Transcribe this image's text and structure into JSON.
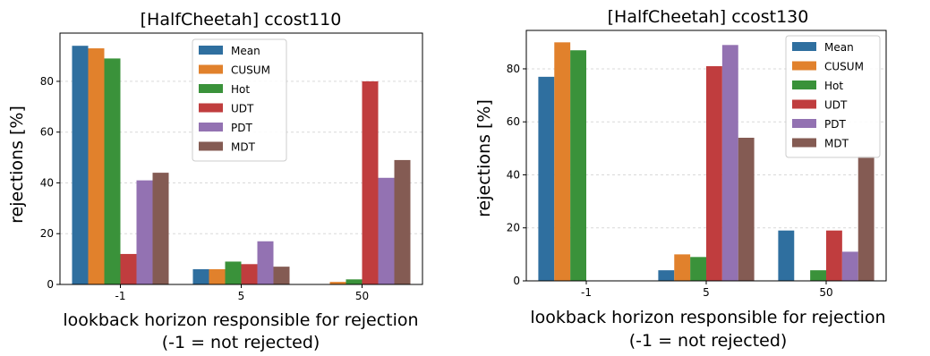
{
  "chart_data": [
    {
      "type": "bar",
      "title": "[HalfCheetah] ccost110",
      "xlabel": "lookback horizon responsible for rejection",
      "xlabel2": "(-1 = not rejected)",
      "ylabel": "rejections [%]",
      "categories": [
        "-1",
        "5",
        "50"
      ],
      "ylim": [
        0,
        99
      ],
      "yticks": [
        0,
        20,
        40,
        60,
        80
      ],
      "grid": "horizontal dashed",
      "legend_position": "top-center",
      "series": [
        {
          "name": "Mean",
          "color": "#2f6f9f",
          "values": [
            94,
            6,
            0
          ]
        },
        {
          "name": "CUSUM",
          "color": "#e1812c",
          "values": [
            93,
            6,
            1
          ]
        },
        {
          "name": "Hot",
          "color": "#3a923a",
          "values": [
            89,
            9,
            2
          ]
        },
        {
          "name": "UDT",
          "color": "#c03d3e",
          "values": [
            12,
            8,
            80
          ]
        },
        {
          "name": "PDT",
          "color": "#9372b2",
          "values": [
            41,
            17,
            42
          ]
        },
        {
          "name": "MDT",
          "color": "#845b53",
          "values": [
            44,
            7,
            49
          ]
        }
      ]
    },
    {
      "type": "bar",
      "title": "[HalfCheetah] ccost130",
      "xlabel": "lookback horizon responsible for rejection",
      "xlabel2": "(-1 = not rejected)",
      "ylabel": "rejections [%]",
      "categories": [
        "-1",
        "5",
        "50"
      ],
      "ylim": [
        0,
        94.5
      ],
      "yticks": [
        0,
        20,
        40,
        60,
        80
      ],
      "grid": "horizontal dashed",
      "legend_position": "top-right",
      "series": [
        {
          "name": "Mean",
          "color": "#2f6f9f",
          "values": [
            77,
            4,
            19
          ]
        },
        {
          "name": "CUSUM",
          "color": "#e1812c",
          "values": [
            90,
            10,
            0
          ]
        },
        {
          "name": "Hot",
          "color": "#3a923a",
          "values": [
            87,
            9,
            4
          ]
        },
        {
          "name": "UDT",
          "color": "#c03d3e",
          "values": [
            0,
            81,
            19
          ]
        },
        {
          "name": "PDT",
          "color": "#9372b2",
          "values": [
            0,
            89,
            11
          ]
        },
        {
          "name": "MDT",
          "color": "#845b53",
          "values": [
            0,
            54,
            47
          ]
        }
      ]
    }
  ]
}
